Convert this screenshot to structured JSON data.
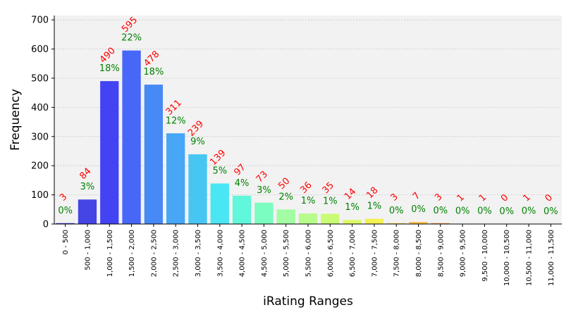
{
  "chart_data": {
    "type": "bar",
    "xlabel": "iRating Ranges",
    "ylabel": "Frequency",
    "ylim": [
      0,
      715
    ],
    "yticks": [
      0,
      100,
      200,
      300,
      400,
      500,
      600,
      700
    ],
    "yticks_text": [
      "0",
      "100",
      "200",
      "300",
      "400",
      "500",
      "600",
      "700"
    ],
    "grid": true,
    "categories": [
      "0 - 500",
      "500 - 1,000",
      "1,000 - 1,500",
      "1,500 - 2,000",
      "2,000 - 2,500",
      "2,500 - 3,000",
      "3,000 - 3,500",
      "3,500 - 4,000",
      "4,000 - 4,500",
      "4,500 - 5,000",
      "5,000 - 5,500",
      "5,500 - 6,000",
      "6,000 - 6,500",
      "6,500 - 7,000",
      "7,000 - 7,500",
      "7,500 - 8,000",
      "8,000 - 8,500",
      "8,500 - 9,000",
      "9,000 - 9,500",
      "9,500 - 10,000",
      "10,000 - 10,500",
      "10,500 - 11,000",
      "11,000 - 11,500"
    ],
    "values": [
      3,
      84,
      490,
      595,
      478,
      311,
      239,
      139,
      97,
      73,
      50,
      36,
      35,
      14,
      18,
      3,
      7,
      3,
      1,
      1,
      0,
      1,
      0
    ],
    "count_labels": [
      "3",
      "84",
      "490",
      "595",
      "478",
      "311",
      "239",
      "139",
      "97",
      "73",
      "50",
      "36",
      "35",
      "14",
      "18",
      "3",
      "7",
      "3",
      "1",
      "1",
      "0",
      "1",
      "0"
    ],
    "percent_labels": [
      "0%",
      "3%",
      "18%",
      "22%",
      "18%",
      "12%",
      "9%",
      "5%",
      "4%",
      "3%",
      "2%",
      "1%",
      "1%",
      "1%",
      "1%",
      "0%",
      "0%",
      "0%",
      "0%",
      "0%",
      "0%",
      "0%",
      "0%"
    ],
    "colors": [
      "#3d3de0",
      "#4545e6",
      "#4343f4",
      "#4667f7",
      "#4789f5",
      "#47a6f6",
      "#47c6f3",
      "#4ae6f4",
      "#60f7da",
      "#7bfcc0",
      "#a3fda3",
      "#b8fc8b",
      "#cafb76",
      "#dcf865",
      "#f3f153",
      "#f9d74e",
      "#fbbc4a",
      "#f9a146",
      "#f88343",
      "#f56a40",
      "#ef5038",
      "#df3a2c",
      "#c02a20"
    ],
    "count_label_color": "#ff0000",
    "percent_label_color": "#008000",
    "plot_background": "#f2f2f2"
  }
}
